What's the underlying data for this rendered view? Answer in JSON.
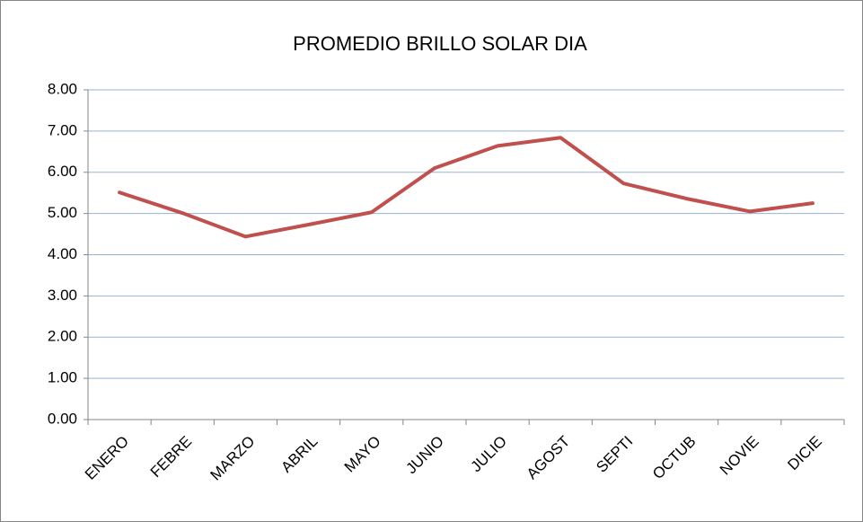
{
  "chart_data": {
    "type": "line",
    "title": "PROMEDIO BRILLO SOLAR DIA",
    "categories": [
      "ENERO",
      "FEBRE",
      "MARZO",
      "ABRIL",
      "MAYO",
      "JUNIO",
      "JULIO",
      "AGOST",
      "SEPTI",
      "OCTUB",
      "NOVIE",
      "DICIE"
    ],
    "values": [
      5.51,
      5.01,
      4.44,
      4.73,
      5.03,
      6.1,
      6.64,
      6.84,
      5.73,
      5.36,
      5.05,
      5.25
    ],
    "color": "#c0504d",
    "ylim": [
      0,
      8
    ],
    "yticks": [
      {
        "value": 0,
        "label": "0.00"
      },
      {
        "value": 1,
        "label": "1.00"
      },
      {
        "value": 2,
        "label": "2.00"
      },
      {
        "value": 3,
        "label": "3.00"
      },
      {
        "value": 4,
        "label": "4.00"
      },
      {
        "value": 5,
        "label": "5.00"
      },
      {
        "value": 6,
        "label": "6.00"
      },
      {
        "value": 7,
        "label": "7.00"
      },
      {
        "value": 8,
        "label": "8.00"
      }
    ],
    "grid": true
  }
}
